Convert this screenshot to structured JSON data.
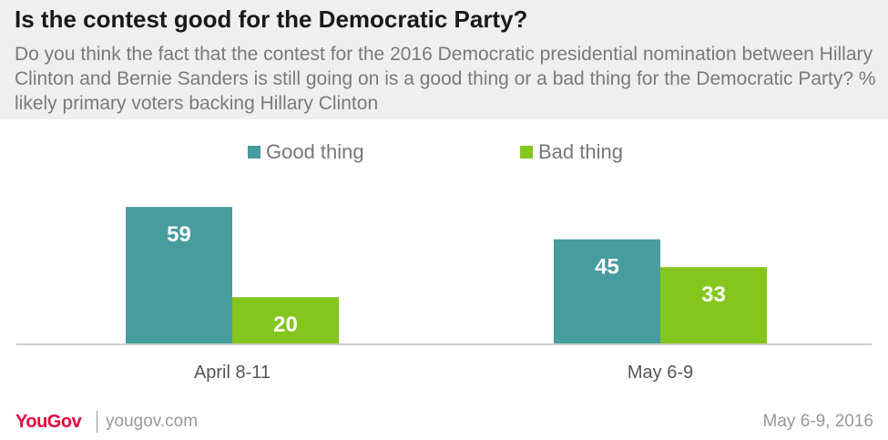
{
  "header": {
    "title": "Is the contest good for the Democratic Party?",
    "subtitle": "Do you think the fact that the contest for the 2016 Democratic presidential nomination between Hillary Clinton and Bernie Sanders is still going on is a good thing or a bad thing for the Democratic Party? % likely primary voters backing Hillary Clinton"
  },
  "colors": {
    "good": "#479c9e",
    "bad": "#84c61e"
  },
  "chart_data": {
    "type": "bar",
    "categories": [
      "April 8-11",
      "May 6-9"
    ],
    "series": [
      {
        "name": "Good thing",
        "values": [
          59,
          45
        ]
      },
      {
        "name": "Bad thing",
        "values": [
          20,
          33
        ]
      }
    ],
    "ylim": [
      0,
      65
    ],
    "grid": false,
    "legend": "top-center"
  },
  "footer": {
    "logo": "YouGov",
    "url": "yougov.com",
    "date": "May 6-9, 2016"
  }
}
